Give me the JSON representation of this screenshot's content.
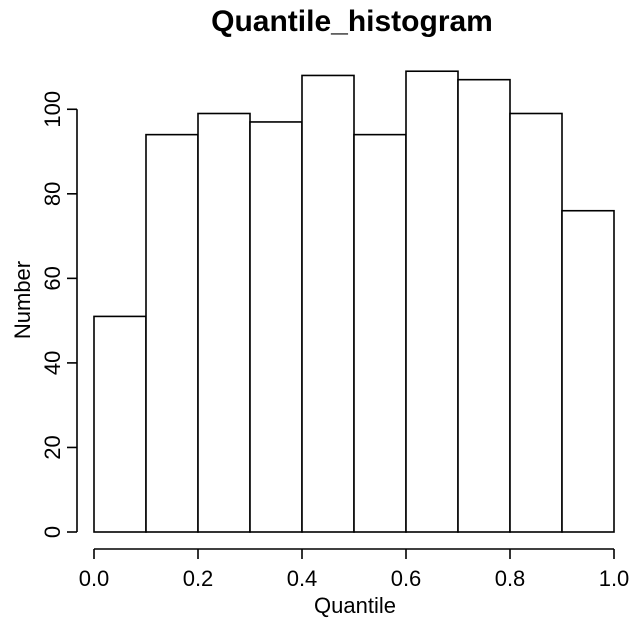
{
  "chart_data": {
    "type": "bar",
    "title": "Quantile_histogram",
    "xlabel": "Quantile",
    "ylabel": "Number",
    "xlim": [
      0,
      1
    ],
    "ylim": [
      0,
      110
    ],
    "bins": [
      {
        "x0": 0.0,
        "x1": 0.1,
        "value": 51
      },
      {
        "x0": 0.1,
        "x1": 0.2,
        "value": 94
      },
      {
        "x0": 0.2,
        "x1": 0.3,
        "value": 99
      },
      {
        "x0": 0.3,
        "x1": 0.4,
        "value": 97
      },
      {
        "x0": 0.4,
        "x1": 0.5,
        "value": 108
      },
      {
        "x0": 0.5,
        "x1": 0.6,
        "value": 94
      },
      {
        "x0": 0.6,
        "x1": 0.7,
        "value": 109
      },
      {
        "x0": 0.7,
        "x1": 0.8,
        "value": 107
      },
      {
        "x0": 0.8,
        "x1": 0.9,
        "value": 99
      },
      {
        "x0": 0.9,
        "x1": 1.0,
        "value": 76
      }
    ],
    "x_ticks": [
      {
        "value": 0.0,
        "label": "0.0"
      },
      {
        "value": 0.2,
        "label": "0.2"
      },
      {
        "value": 0.4,
        "label": "0.4"
      },
      {
        "value": 0.6,
        "label": "0.6"
      },
      {
        "value": 0.8,
        "label": "0.8"
      },
      {
        "value": 1.0,
        "label": "1.0"
      }
    ],
    "y_ticks": [
      {
        "value": 0,
        "label": "0"
      },
      {
        "value": 20,
        "label": "20"
      },
      {
        "value": 40,
        "label": "40"
      },
      {
        "value": 60,
        "label": "60"
      },
      {
        "value": 80,
        "label": "80"
      },
      {
        "value": 100,
        "label": "100"
      }
    ],
    "grid": false,
    "bar_fill": "#ffffff",
    "bar_stroke": "#000000"
  }
}
